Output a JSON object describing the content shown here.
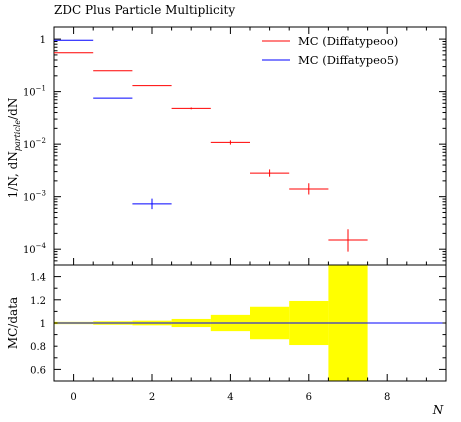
{
  "chart_data": [
    {
      "panel": "main",
      "type": "scatter",
      "title": "ZDC Plus Particle Multiplicity",
      "xlabel": "N",
      "ylabel": "1/N, dN",
      "ylabel_sub": "particle",
      "ylabel_tail": "/dN",
      "yscale": "log",
      "ylim": [
        5e-05,
        1.7
      ],
      "xlim": [
        -0.5,
        9.5
      ],
      "ytick_labels": [
        {
          "value": 1,
          "base": "1",
          "exp": ""
        },
        {
          "value": 0.1,
          "base": "10",
          "exp": "−1"
        },
        {
          "value": 0.01,
          "base": "10",
          "exp": "−2"
        },
        {
          "value": 0.001,
          "base": "10",
          "exp": "−3"
        },
        {
          "value": 0.0001,
          "base": "10",
          "exp": "−4"
        }
      ],
      "legend_placement": "top-right",
      "series": [
        {
          "name": "MC (Diffatypeoo)",
          "color": "#ff0000",
          "points": [
            {
              "x": 0,
              "y": 0.55,
              "ylo": 0.55,
              "yhi": 0.55
            },
            {
              "x": 1,
              "y": 0.25,
              "ylo": 0.25,
              "yhi": 0.25
            },
            {
              "x": 2,
              "y": 0.13,
              "ylo": 0.13,
              "yhi": 0.13
            },
            {
              "x": 3,
              "y": 0.048,
              "ylo": 0.046,
              "yhi": 0.05
            },
            {
              "x": 4,
              "y": 0.0108,
              "ylo": 0.0098,
              "yhi": 0.0118
            },
            {
              "x": 5,
              "y": 0.0028,
              "ylo": 0.0024,
              "yhi": 0.0033
            },
            {
              "x": 6,
              "y": 0.0014,
              "ylo": 0.0011,
              "yhi": 0.0018
            },
            {
              "x": 7,
              "y": 0.00015,
              "ylo": 9e-05,
              "yhi": 0.00024
            }
          ]
        },
        {
          "name": "MC (Diffatypeo5)",
          "color": "#0000ff",
          "points": [
            {
              "x": 0,
              "y": 0.95,
              "ylo": 0.95,
              "yhi": 0.95
            },
            {
              "x": 1,
              "y": 0.075,
              "ylo": 0.075,
              "yhi": 0.075
            },
            {
              "x": 2,
              "y": 0.00073,
              "ylo": 0.00058,
              "yhi": 0.00092
            }
          ]
        }
      ]
    },
    {
      "panel": "ratio",
      "type": "area",
      "ylabel": "MC/data",
      "xlabel": "N",
      "ylim": [
        0.5,
        1.5
      ],
      "xlim": [
        -0.5,
        9.5
      ],
      "yticks": [
        0.6,
        0.8,
        1,
        1.2,
        1.4
      ],
      "ytick_labels": [
        "0.6",
        "0.8",
        "1",
        "1.2",
        "1.4"
      ],
      "xticks": [
        0,
        2,
        4,
        6,
        8
      ],
      "xtick_labels": [
        "0",
        "2",
        "4",
        "6",
        "8"
      ],
      "reference_line": {
        "y": 1,
        "color": "#0000ff"
      },
      "band_color": "#ffff00",
      "band": [
        {
          "x": 0,
          "lo": 0.99,
          "hi": 1.01
        },
        {
          "x": 1,
          "lo": 0.985,
          "hi": 1.015
        },
        {
          "x": 2,
          "lo": 0.98,
          "hi": 1.02
        },
        {
          "x": 3,
          "lo": 0.965,
          "hi": 1.035
        },
        {
          "x": 4,
          "lo": 0.93,
          "hi": 1.07
        },
        {
          "x": 5,
          "lo": 0.86,
          "hi": 1.14
        },
        {
          "x": 6,
          "lo": 0.81,
          "hi": 1.19
        },
        {
          "x": 7,
          "lo": 0.5,
          "hi": 1.5
        }
      ]
    }
  ]
}
